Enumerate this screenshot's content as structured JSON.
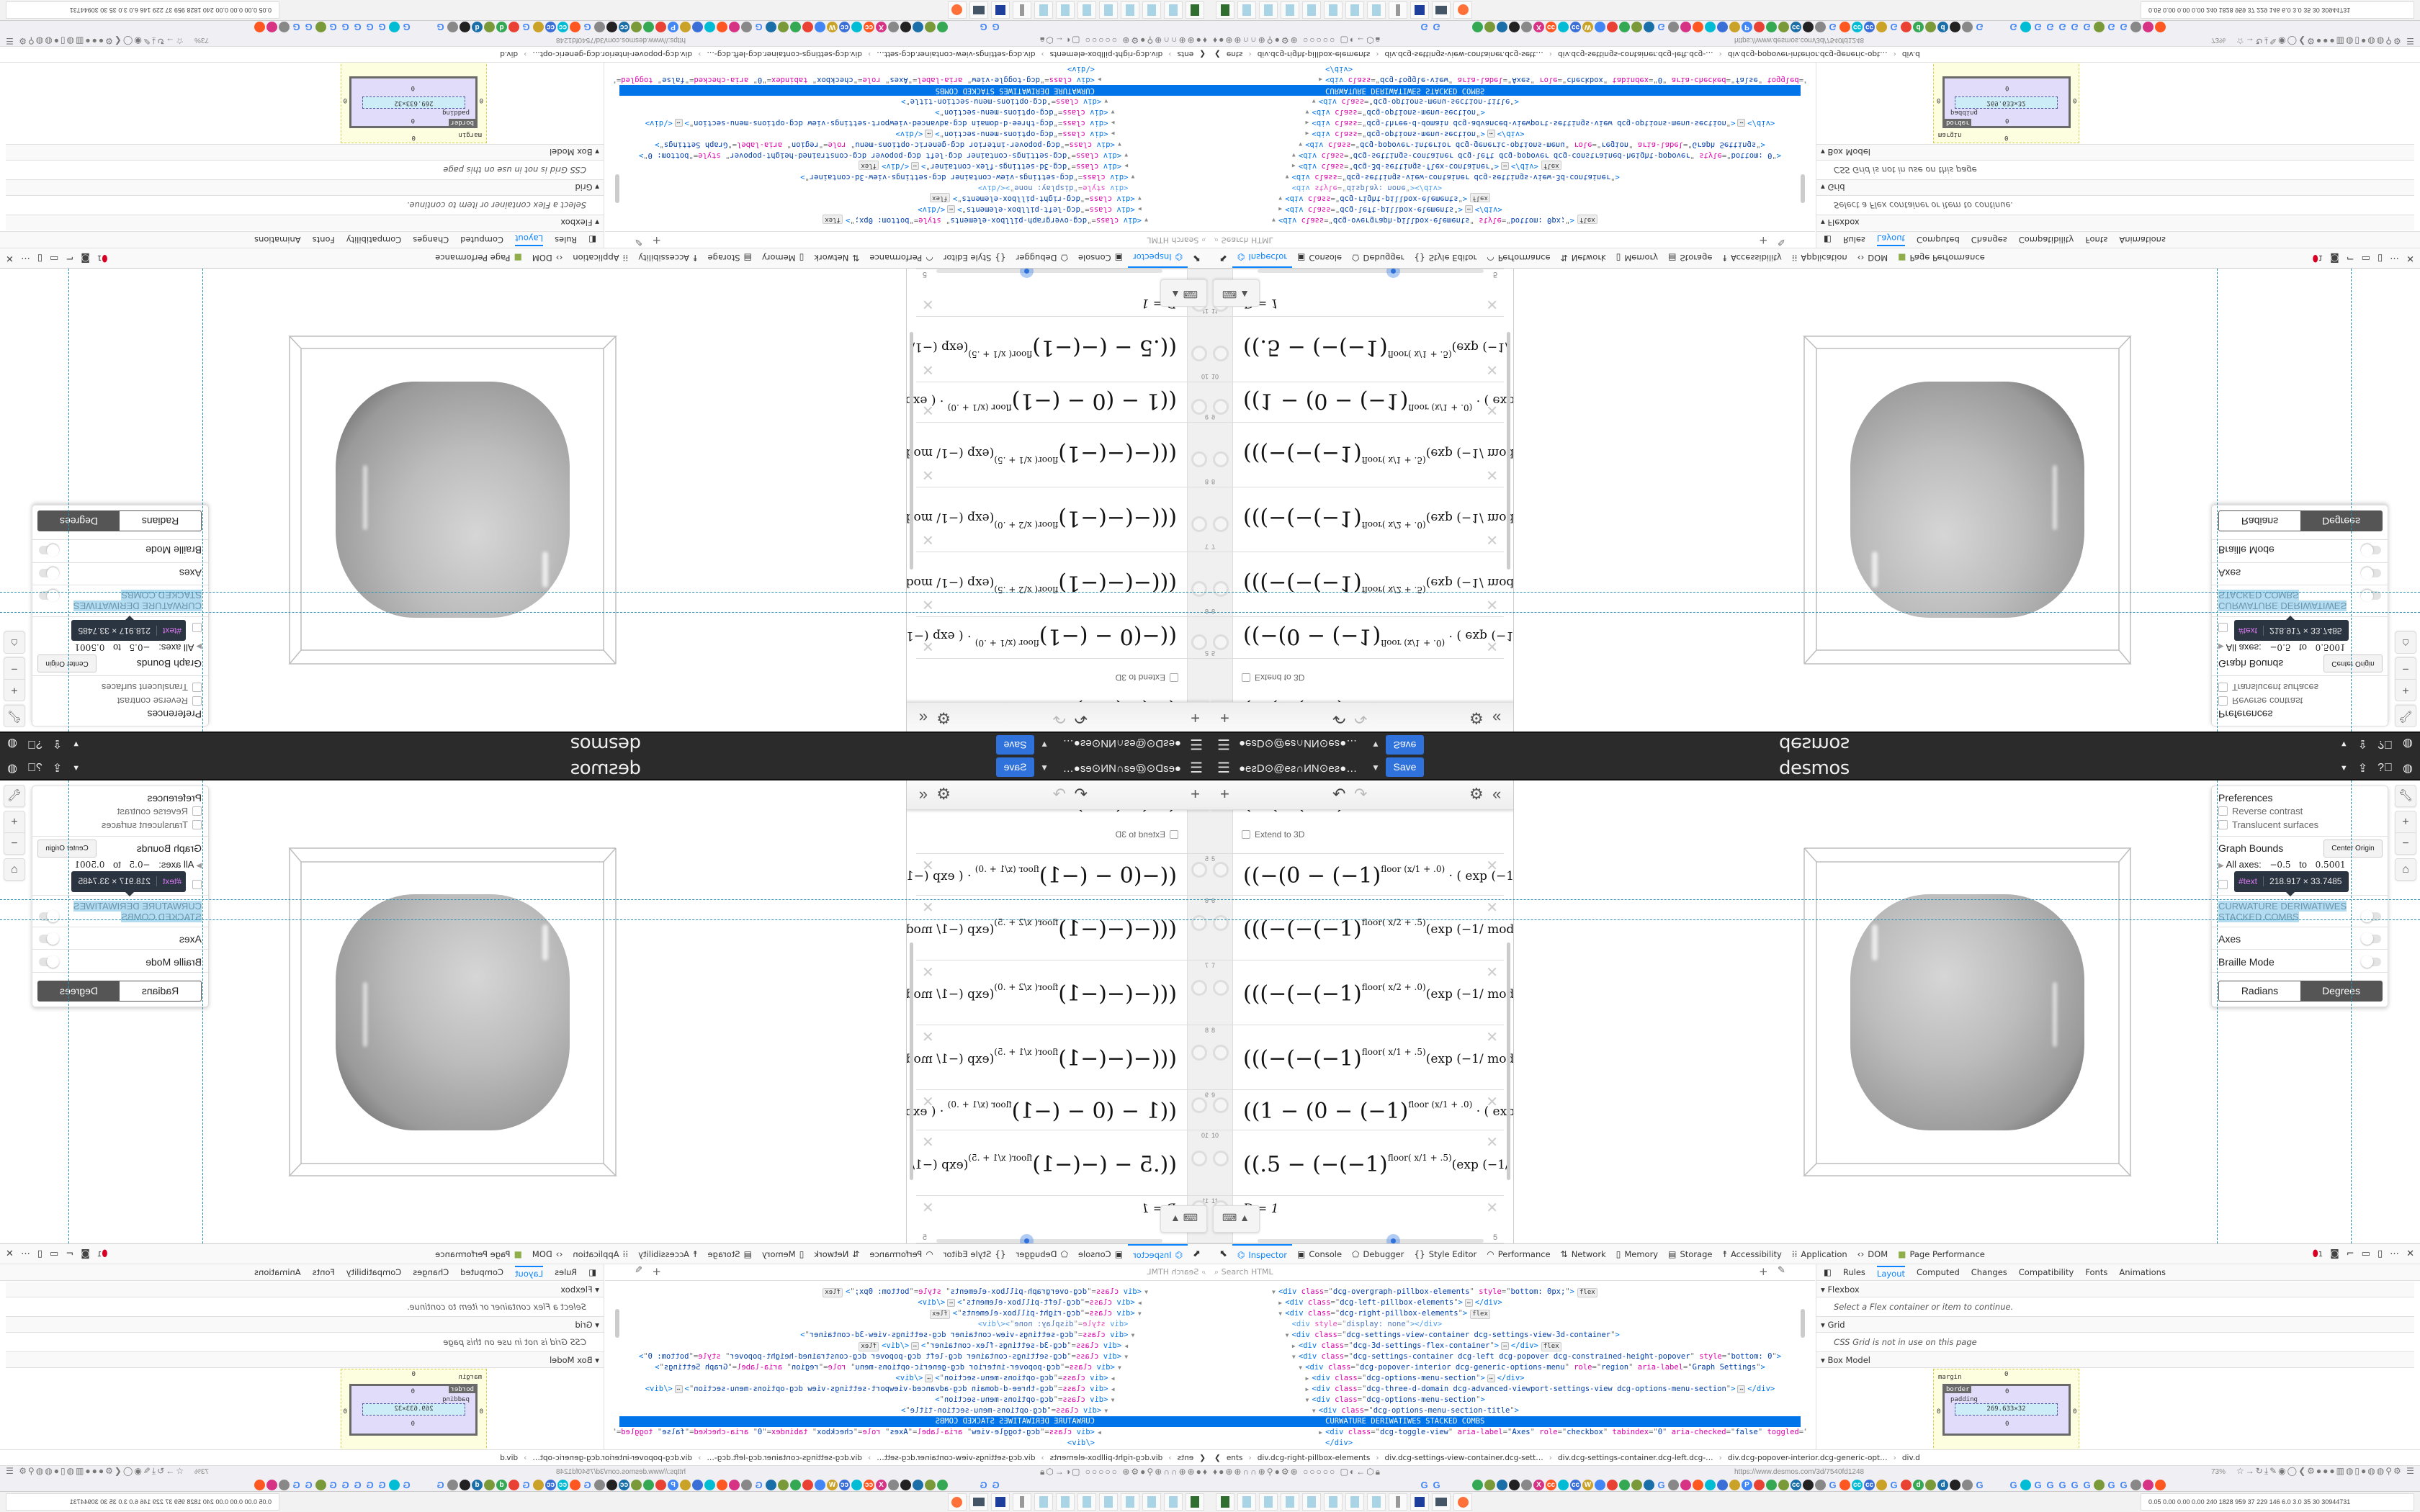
{
  "header": {
    "user": "●eƨD⊙@eƨ∩ИN⊙eƨ●…",
    "save_label": "Save",
    "logo": "desmos",
    "icons": [
      "menu-icon",
      "caret-down-icon",
      "share-icon",
      "help-icon",
      "globe-icon"
    ]
  },
  "expressions": {
    "toolbar": {
      "add": "+",
      "undo": "↶",
      "redo": "↷",
      "settings": "⚙",
      "collapse": "«"
    },
    "extend_label": "Extend to 3D",
    "rows": [
      {
        "num": "",
        "pre": "(−(−(−1)",
        "sup": "",
        "post": "            (exp (−1/ mod( ½ + …"
      },
      {
        "num": "5",
        "pre": "((−(0 − (−1)",
        "sup": "floor (x/1 + .0)",
        "post": " · ( exp (−1/(x − (1)"
      },
      {
        "num": "6",
        "pre": "(((−(−(−1)",
        "sup": "floor( x/2 + .5)",
        "post": "(exp (−1/ mod( x/2 +"
      },
      {
        "num": "7",
        "pre": "(((−(−(−1)",
        "sup": "floor( x/2 + .0)",
        "post": "(exp (−1/ mod( x/2 +"
      },
      {
        "num": "8",
        "pre": "(((−(−(−1)",
        "sup": "floor( x/1 + .5)",
        "post": "(exp (−1/ mod( x/1 +"
      },
      {
        "num": "9",
        "pre": "((1 − (0 − (−1)",
        "sup": "floor (x/1 + .0)",
        "post": " · ( exp (−1/(x − (1"
      },
      {
        "num": "10",
        "pre": "((.5 − (−(−1)",
        "sup": "floor( x/1 + .5)",
        "post": "(exp (−1/ mod( x/1"
      },
      {
        "num": "11",
        "pre": "D = 1",
        "sup": "",
        "post": ""
      }
    ],
    "slider": {
      "variable": "D",
      "value": 1,
      "max_label": "5",
      "position_fraction": 0.6
    }
  },
  "settings": {
    "preferences": "Preferences",
    "reverse_contrast": "Reverse contrast",
    "translucent_surfaces": "Translucent surfaces",
    "graph_bounds": "Graph Bounds",
    "center_origin": "Center Origin",
    "all_axes": "All axes:",
    "axes_min": "−0.5",
    "to": "to",
    "axes_max": "0.5001",
    "highlighted_title_1": "CURWATURE DERIWATIWES",
    "highlighted_title_2": "STACKED COMBS",
    "axes": "Axes",
    "braille": "Braille Mode",
    "radians": "Radians",
    "degrees": "Degrees",
    "selected_angle": "Degrees",
    "tooltip_node": "#text",
    "tooltip_size": "218.917 × 33.7485",
    "side_buttons": [
      "wrench-icon",
      "zoom-in-icon",
      "zoom-out-icon",
      "home-icon"
    ]
  },
  "devtools": {
    "tabs": [
      {
        "label": "Inspector",
        "icon": "⌬",
        "active": true
      },
      {
        "label": "Console",
        "icon": "▣"
      },
      {
        "label": "Debugger",
        "icon": "⬠"
      },
      {
        "label": "Style Editor",
        "icon": "{}"
      },
      {
        "label": "Performance",
        "icon": "◠"
      },
      {
        "label": "Network",
        "icon": "⇅"
      },
      {
        "label": "Memory",
        "icon": "▯"
      },
      {
        "label": "Storage",
        "icon": "▤"
      },
      {
        "label": "Accessibility",
        "icon": "☨"
      },
      {
        "label": "Application",
        "icon": "⁞⁞"
      },
      {
        "label": "DOM",
        "icon": "‹›"
      },
      {
        "label": "Page Performance",
        "icon": "■"
      }
    ],
    "error_count": "1",
    "search_placeholder": "Search HTML",
    "markup": [
      {
        "depth": 0,
        "twisty": "▼",
        "tag": "div",
        "attrs": [
          [
            "class",
            "dcg-overgraph-pillbox-elements"
          ],
          [
            "style",
            "bottom: 0px;"
          ]
        ],
        "badge": "flex"
      },
      {
        "depth": 1,
        "twisty": "▶",
        "tag": "div",
        "attrs": [
          [
            "class",
            "dcg-left-pillbox-elements"
          ]
        ],
        "collapsed": true
      },
      {
        "depth": 1,
        "twisty": "▼",
        "tag": "div",
        "attrs": [
          [
            "class",
            "dcg-right-pillbox-elements"
          ]
        ],
        "badge": "flex"
      },
      {
        "depth": 2,
        "twisty": "",
        "tag": "div",
        "attrs": [
          [
            "style",
            "display: none"
          ]
        ],
        "empty": true,
        "dim": true
      },
      {
        "depth": 2,
        "twisty": "▼",
        "tag": "div",
        "attrs": [
          [
            "class",
            "dcg-settings-view-container dcg-settings-view-3d-container"
          ]
        ]
      },
      {
        "depth": 3,
        "twisty": "▶",
        "tag": "div",
        "attrs": [
          [
            "class",
            "dcg-3d-settings-flex-container"
          ]
        ],
        "collapsed": true,
        "badge": "flex"
      },
      {
        "depth": 3,
        "twisty": "▼",
        "tag": "div",
        "attrs": [
          [
            "class",
            "dcg-settings-container dcg-left dcg-popover dcg-constrained-height-popover"
          ],
          [
            "style",
            "bottom: 0"
          ]
        ]
      },
      {
        "depth": 4,
        "twisty": "▼",
        "tag": "div",
        "attrs": [
          [
            "class",
            "dcg-popover-interior dcg-generic-options-menu"
          ],
          [
            "role",
            "region"
          ],
          [
            "aria-label",
            "Graph Settings"
          ]
        ]
      },
      {
        "depth": 5,
        "twisty": "▶",
        "tag": "div",
        "attrs": [
          [
            "class",
            "dcg-options-menu-section"
          ]
        ],
        "collapsed": true
      },
      {
        "depth": 5,
        "twisty": "▶",
        "tag": "div",
        "attrs": [
          [
            "class",
            "dcg-three-d-domain dcg-advanced-viewport-settings-view dcg-options-menu-section"
          ]
        ],
        "collapsed": true
      },
      {
        "depth": 5,
        "twisty": "▼",
        "tag": "div",
        "attrs": [
          [
            "class",
            "dcg-options-menu-section"
          ]
        ]
      },
      {
        "depth": 6,
        "twisty": "▼",
        "tag": "div",
        "attrs": [
          [
            "class",
            "dcg-options-menu-section-title"
          ]
        ]
      },
      {
        "depth": 7,
        "text": "CURWATURE DERIWATIWES STACKED COMBS",
        "selected": true
      },
      {
        "depth": 7,
        "twisty": "▶",
        "tag": "div",
        "attrs": [
          [
            "class",
            "dcg-toggle-view"
          ],
          [
            "aria-label",
            "Axes"
          ],
          [
            "role",
            "checkbox"
          ],
          [
            "tabindex",
            "0"
          ],
          [
            "aria-checked",
            "false"
          ],
          [
            "toggled",
            "false"
          ],
          [
            "ontap",
            ""
          ]
        ],
        "collapsed": true
      },
      {
        "depth": 7,
        "closing": "div"
      },
      {
        "depth": 6,
        "twisty": "",
        "tag": "div",
        "attrs": [
          [
            "style",
            "display: none"
          ]
        ],
        "empty": true,
        "dim": true
      }
    ],
    "side_tabs": [
      "Rules",
      "Layout",
      "Computed",
      "Changes",
      "Compatibility",
      "Fonts",
      "Animations"
    ],
    "active_side_tab": "Layout",
    "flexbox": {
      "title": "Flexbox",
      "message": "Select a Flex container or item to continue."
    },
    "grid": {
      "title": "Grid",
      "message": "CSS Grid is not in use on this page"
    },
    "box_model": {
      "title": "Box Model",
      "margin_label": "margin",
      "border_label": "border",
      "padding_label": "padding",
      "content_size": "269.633×32",
      "zero": "0"
    },
    "breadcrumbs": [
      "ents",
      "div.dcg-right-pillbox-elements",
      "div.dcg-settings-view-container.dcg-sett…",
      "div.dcg-settings-container.dcg-left.dcg-…",
      "div.dcg-popover-interior.dcg-generic-opt…",
      "div.d"
    ]
  },
  "browser": {
    "url": "https://www.desmos.com/3d/7540fd1248",
    "zoom": "73%",
    "bookmarks": [
      "G",
      "G",
      "",
      "",
      "",
      "",
      "",
      "X",
      "cc",
      "",
      "cc",
      "W",
      "",
      "",
      "",
      "",
      "",
      "G",
      "",
      "",
      "",
      "",
      "",
      "",
      "P",
      "",
      "",
      "",
      "cc",
      "",
      "",
      "G",
      "",
      "cc",
      "cc",
      "",
      "G",
      "",
      "d",
      "",
      "d",
      "",
      "",
      "G",
      "G",
      "",
      "G",
      "G",
      "G",
      "G",
      "G",
      "",
      "G",
      "G",
      "",
      "",
      ""
    ],
    "stats": "0.05 0.00 0.00 0.00 240 1828 959 37 229 146 6.0 3.0 35 30 30944731"
  }
}
